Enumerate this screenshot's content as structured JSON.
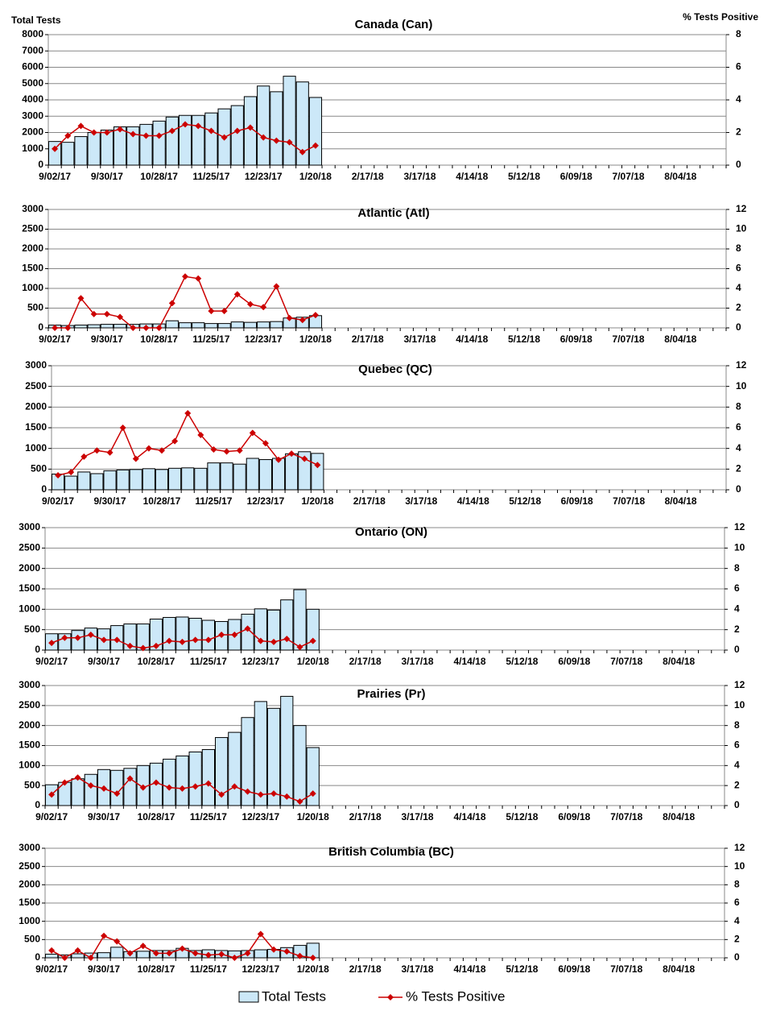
{
  "chart_data": [
    {
      "type": "bar",
      "title": "Canada (Can)",
      "y_label": "Total Tests",
      "y2_label": "% Tests Positive",
      "categories": [
        "9/02/17",
        null,
        null,
        null,
        "9/30/17",
        null,
        null,
        null,
        "10/28/17",
        null,
        null,
        null,
        "11/25/17",
        null,
        null,
        null,
        "12/23/17",
        null,
        null,
        null,
        "1/20/18",
        null,
        null,
        null,
        "2/17/18",
        null,
        null,
        null,
        "3/17/18",
        null,
        null,
        null,
        "4/14/18",
        null,
        null,
        null,
        "5/12/18",
        null,
        null,
        null,
        "6/09/18",
        null,
        null,
        null,
        "7/07/18",
        null,
        null,
        null,
        "8/04/18",
        null,
        null,
        null
      ],
      "series": [
        {
          "name": "Total Tests",
          "color": "#cce8f8",
          "values": [
            1450,
            1400,
            1750,
            2000,
            2150,
            2350,
            2350,
            2500,
            2700,
            2950,
            3050,
            3050,
            3200,
            3450,
            3650,
            4200,
            4850,
            4500,
            5450,
            5100,
            4150,
            null,
            null,
            null,
            null,
            null,
            null,
            null,
            null,
            null,
            null,
            null,
            null,
            null,
            null,
            null,
            null,
            null,
            null,
            null,
            null,
            null,
            null,
            null,
            null,
            null,
            null,
            null,
            null,
            null,
            null,
            null
          ]
        },
        {
          "name": "% Tests Positive",
          "color": "#cc0000",
          "axis": "y2",
          "values": [
            1.0,
            1.8,
            2.4,
            2.0,
            2.0,
            2.2,
            1.9,
            1.8,
            1.8,
            2.1,
            2.5,
            2.4,
            2.1,
            1.7,
            2.1,
            2.3,
            1.7,
            1.5,
            1.4,
            0.8,
            1.2,
            null,
            null,
            null,
            null,
            null,
            null,
            null,
            null,
            null,
            null,
            null,
            null,
            null,
            null,
            null,
            null,
            null,
            null,
            null,
            null,
            null,
            null,
            null,
            null,
            null,
            null,
            null,
            null,
            null,
            null,
            null
          ]
        }
      ],
      "ylim": [
        0,
        8000
      ],
      "yticks": [
        0,
        1000,
        2000,
        3000,
        4000,
        5000,
        6000,
        7000,
        8000
      ],
      "y2lim": [
        0,
        8
      ],
      "y2ticks": [
        0,
        2,
        4,
        6,
        8
      ],
      "grid": true
    },
    {
      "type": "bar",
      "title": "Atlantic (Atl)",
      "categories": [
        "9/02/17",
        null,
        null,
        null,
        "9/30/17",
        null,
        null,
        null,
        "10/28/17",
        null,
        null,
        null,
        "11/25/17",
        null,
        null,
        null,
        "12/23/17",
        null,
        null,
        null,
        "1/20/18",
        null,
        null,
        null,
        "2/17/18",
        null,
        null,
        null,
        "3/17/18",
        null,
        null,
        null,
        "4/14/18",
        null,
        null,
        null,
        "5/12/18",
        null,
        null,
        null,
        "6/09/18",
        null,
        null,
        null,
        "7/07/18",
        null,
        null,
        null,
        "8/04/18",
        null,
        null,
        null
      ],
      "series": [
        {
          "color": "#cce8f8",
          "values": [
            70,
            60,
            70,
            80,
            90,
            90,
            90,
            100,
            100,
            180,
            130,
            130,
            110,
            110,
            150,
            140,
            150,
            160,
            250,
            270,
            310,
            null,
            null,
            null,
            null,
            null,
            null,
            null,
            null,
            null,
            null,
            null,
            null,
            null,
            null,
            null,
            null,
            null,
            null,
            null,
            null,
            null,
            null,
            null,
            null,
            null,
            null,
            null,
            null,
            null,
            null,
            null
          ]
        },
        {
          "color": "#cc0000",
          "axis": "y2",
          "values": [
            0,
            0,
            3.0,
            1.4,
            1.4,
            1.1,
            0,
            0,
            0,
            2.5,
            5.2,
            5.0,
            1.7,
            1.7,
            3.4,
            2.4,
            2.1,
            4.2,
            1.0,
            0.8,
            1.3,
            null,
            null,
            null,
            null,
            null,
            null,
            null,
            null,
            null,
            null,
            null,
            null,
            null,
            null,
            null,
            null,
            null,
            null,
            null,
            null,
            null,
            null,
            null,
            null,
            null,
            null,
            null,
            null,
            null,
            null,
            null
          ]
        }
      ],
      "ylim": [
        0,
        3000
      ],
      "yticks": [
        0,
        500,
        1000,
        1500,
        2000,
        2500,
        3000
      ],
      "y2lim": [
        0,
        12
      ],
      "y2ticks": [
        0,
        2,
        4,
        6,
        8,
        10,
        12
      ],
      "grid": true
    },
    {
      "type": "bar",
      "title": "Quebec (QC)",
      "categories": [
        "9/02/17",
        null,
        null,
        null,
        "9/30/17",
        null,
        null,
        null,
        "10/28/17",
        null,
        null,
        null,
        "11/25/17",
        null,
        null,
        null,
        "12/23/17",
        null,
        null,
        null,
        "1/20/18",
        null,
        null,
        null,
        "2/17/18",
        null,
        null,
        null,
        "3/17/18",
        null,
        null,
        null,
        "4/14/18",
        null,
        null,
        null,
        "5/12/18",
        null,
        null,
        null,
        "6/09/18",
        null,
        null,
        null,
        "7/07/18",
        null,
        null,
        null,
        "8/04/18",
        null,
        null,
        null
      ],
      "series": [
        {
          "color": "#cce8f8",
          "values": [
            380,
            330,
            430,
            390,
            460,
            480,
            490,
            510,
            490,
            520,
            530,
            520,
            650,
            650,
            620,
            760,
            730,
            760,
            870,
            920,
            880,
            null,
            null,
            null,
            null,
            null,
            null,
            null,
            null,
            null,
            null,
            null,
            null,
            null,
            null,
            null,
            null,
            null,
            null,
            null,
            null,
            null,
            null,
            null,
            null,
            null,
            null,
            null,
            null,
            null,
            null,
            null
          ]
        },
        {
          "color": "#cc0000",
          "axis": "y2",
          "values": [
            1.4,
            1.7,
            3.2,
            3.8,
            3.6,
            6.0,
            3.0,
            4.0,
            3.8,
            4.7,
            7.4,
            5.3,
            3.9,
            3.7,
            3.8,
            5.5,
            4.5,
            2.9,
            3.5,
            3.0,
            2.4,
            null,
            null,
            null,
            null,
            null,
            null,
            null,
            null,
            null,
            null,
            null,
            null,
            null,
            null,
            null,
            null,
            null,
            null,
            null,
            null,
            null,
            null,
            null,
            null,
            null,
            null,
            null,
            null,
            null,
            null,
            null
          ]
        }
      ],
      "ylim": [
        0,
        3000
      ],
      "yticks": [
        0,
        500,
        1000,
        1500,
        2000,
        2500,
        3000
      ],
      "y2lim": [
        0,
        12
      ],
      "y2ticks": [
        0,
        2,
        4,
        6,
        8,
        10,
        12
      ],
      "grid": true
    },
    {
      "type": "bar",
      "title": "Ontario (ON)",
      "categories": [
        "9/02/17",
        null,
        null,
        null,
        "9/30/17",
        null,
        null,
        null,
        "10/28/17",
        null,
        null,
        null,
        "11/25/17",
        null,
        null,
        null,
        "12/23/17",
        null,
        null,
        null,
        "1/20/18",
        null,
        null,
        null,
        "2/17/18",
        null,
        null,
        null,
        "3/17/18",
        null,
        null,
        null,
        "4/14/18",
        null,
        null,
        null,
        "5/12/18",
        null,
        null,
        null,
        "6/09/18",
        null,
        null,
        null,
        "7/07/18",
        null,
        null,
        null,
        "8/04/18",
        null,
        null,
        null
      ],
      "series": [
        {
          "color": "#cce8f8",
          "values": [
            400,
            400,
            480,
            540,
            520,
            600,
            640,
            640,
            760,
            800,
            810,
            780,
            730,
            700,
            750,
            880,
            1010,
            980,
            1230,
            1480,
            1000,
            null,
            null,
            null,
            null,
            null,
            null,
            null,
            null,
            null,
            null,
            null,
            null,
            null,
            null,
            null,
            null,
            null,
            null,
            null,
            null,
            null,
            null,
            null,
            null,
            null,
            null,
            null,
            null,
            null,
            null,
            null
          ]
        },
        {
          "color": "#cc0000",
          "axis": "y2",
          "values": [
            0.7,
            1.2,
            1.2,
            1.5,
            1.0,
            1.0,
            0.4,
            0.2,
            0.4,
            0.9,
            0.8,
            1.0,
            1.0,
            1.5,
            1.5,
            2.1,
            0.9,
            0.8,
            1.1,
            0.3,
            0.9,
            null,
            null,
            null,
            null,
            null,
            null,
            null,
            null,
            null,
            null,
            null,
            null,
            null,
            null,
            null,
            null,
            null,
            null,
            null,
            null,
            null,
            null,
            null,
            null,
            null,
            null,
            null,
            null,
            null,
            null,
            null
          ]
        }
      ],
      "ylim": [
        0,
        3000
      ],
      "yticks": [
        0,
        500,
        1000,
        1500,
        2000,
        2500,
        3000
      ],
      "y2lim": [
        0,
        12
      ],
      "y2ticks": [
        0,
        2,
        4,
        6,
        8,
        10,
        12
      ],
      "grid": true
    },
    {
      "type": "bar",
      "title": "Prairies (Pr)",
      "categories": [
        "9/02/17",
        null,
        null,
        null,
        "9/30/17",
        null,
        null,
        null,
        "10/28/17",
        null,
        null,
        null,
        "11/25/17",
        null,
        null,
        null,
        "12/23/17",
        null,
        null,
        null,
        "1/20/18",
        null,
        null,
        null,
        "2/17/18",
        null,
        null,
        null,
        "3/17/18",
        null,
        null,
        null,
        "4/14/18",
        null,
        null,
        null,
        "5/12/18",
        null,
        null,
        null,
        "6/09/18",
        null,
        null,
        null,
        "7/07/18",
        null,
        null,
        null,
        "8/04/18",
        null,
        null,
        null
      ],
      "series": [
        {
          "color": "#cce8f8",
          "values": [
            520,
            580,
            670,
            780,
            900,
            880,
            930,
            1000,
            1060,
            1160,
            1240,
            1340,
            1400,
            1700,
            1830,
            2200,
            2600,
            2430,
            2730,
            2000,
            1450,
            null,
            null,
            null,
            null,
            null,
            null,
            null,
            null,
            null,
            null,
            null,
            null,
            null,
            null,
            null,
            null,
            null,
            null,
            null,
            null,
            null,
            null,
            null,
            null,
            null,
            null,
            null,
            null,
            null,
            null,
            null
          ]
        },
        {
          "color": "#cc0000",
          "axis": "y2",
          "values": [
            1.1,
            2.3,
            2.8,
            2.0,
            1.7,
            1.2,
            2.7,
            1.8,
            2.3,
            1.8,
            1.7,
            1.9,
            2.2,
            1.1,
            1.9,
            1.4,
            1.1,
            1.2,
            0.9,
            0.4,
            1.2,
            null,
            null,
            null,
            null,
            null,
            null,
            null,
            null,
            null,
            null,
            null,
            null,
            null,
            null,
            null,
            null,
            null,
            null,
            null,
            null,
            null,
            null,
            null,
            null,
            null,
            null,
            null,
            null,
            null,
            null,
            null
          ]
        }
      ],
      "ylim": [
        0,
        3000
      ],
      "yticks": [
        0,
        500,
        1000,
        1500,
        2000,
        2500,
        3000
      ],
      "y2lim": [
        0,
        12
      ],
      "y2ticks": [
        0,
        2,
        4,
        6,
        8,
        10,
        12
      ],
      "grid": true
    },
    {
      "type": "bar",
      "title": "British Columbia (BC)",
      "categories": [
        "9/02/17",
        null,
        null,
        null,
        "9/30/17",
        null,
        null,
        null,
        "10/28/17",
        null,
        null,
        null,
        "11/25/17",
        null,
        null,
        null,
        "12/23/17",
        null,
        null,
        null,
        "1/20/18",
        null,
        null,
        null,
        "2/17/18",
        null,
        null,
        null,
        "3/17/18",
        null,
        null,
        null,
        "4/14/18",
        null,
        null,
        null,
        "5/12/18",
        null,
        null,
        null,
        "6/09/18",
        null,
        null,
        null,
        "7/07/18",
        null,
        null,
        null,
        "8/04/18",
        null,
        null,
        null
      ],
      "series": [
        {
          "color": "#cce8f8",
          "values": [
            100,
            80,
            110,
            130,
            140,
            290,
            170,
            180,
            200,
            200,
            260,
            200,
            220,
            200,
            190,
            200,
            220,
            230,
            280,
            340,
            400,
            null,
            null,
            null,
            null,
            null,
            null,
            null,
            null,
            null,
            null,
            null,
            null,
            null,
            null,
            null,
            null,
            null,
            null,
            null,
            null,
            null,
            null,
            null,
            null,
            null,
            null,
            null,
            null,
            null,
            null,
            null
          ]
        },
        {
          "color": "#cc0000",
          "axis": "y2",
          "values": [
            0.8,
            0,
            0.8,
            0,
            2.4,
            1.8,
            0.5,
            1.3,
            0.5,
            0.5,
            1.0,
            0.5,
            0.3,
            0.4,
            0,
            0.5,
            2.6,
            0.9,
            0.7,
            0.2,
            0,
            null,
            null,
            null,
            null,
            null,
            null,
            null,
            null,
            null,
            null,
            null,
            null,
            null,
            null,
            null,
            null,
            null,
            null,
            null,
            null,
            null,
            null,
            null,
            null,
            null,
            null,
            null,
            null,
            null,
            null,
            null
          ]
        }
      ],
      "ylim": [
        0,
        3000
      ],
      "yticks": [
        0,
        500,
        1000,
        1500,
        2000,
        2500,
        3000
      ],
      "y2lim": [
        0,
        12
      ],
      "y2ticks": [
        0,
        2,
        4,
        6,
        8,
        10,
        12
      ],
      "grid": true
    }
  ]
}
